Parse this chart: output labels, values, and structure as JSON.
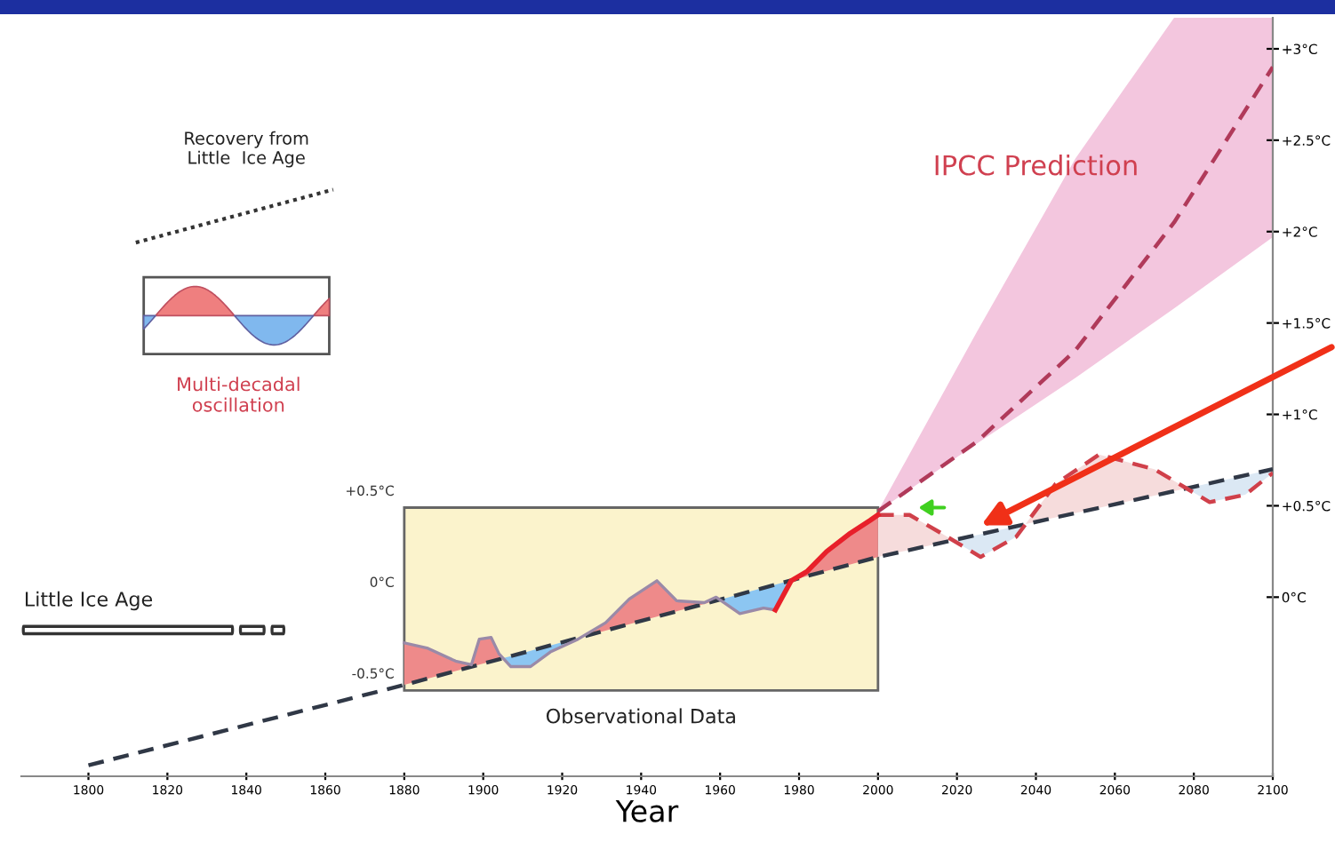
{
  "chart_data": {
    "type": "line",
    "xlabel": "Year",
    "xlim": [
      1783,
      2100
    ],
    "ylim": [
      -0.98,
      3.17
    ],
    "xticks": [
      1800,
      1820,
      1840,
      1860,
      1880,
      1900,
      1920,
      1940,
      1960,
      1980,
      2000,
      2020,
      2040,
      2060,
      2080,
      2100
    ],
    "yticks": [
      {
        "value": 0,
        "label": "0°C"
      },
      {
        "value": 0.5,
        "label": "+0.5°C"
      },
      {
        "value": 1,
        "label": "+1°C"
      },
      {
        "value": 1.5,
        "label": "+1.5°C"
      },
      {
        "value": 2,
        "label": "+2°C"
      },
      {
        "value": 2.5,
        "label": "+2.5°C"
      },
      {
        "value": 3,
        "label": "+3°C"
      }
    ],
    "series": [
      {
        "color": "#303846",
        "line_style": "dashed",
        "x": [
          1800,
          1880,
          2000,
          2100
        ],
        "values": [
          -0.92,
          -0.48,
          0.22,
          0.7
        ]
      },
      {
        "color": "#b03a5a",
        "line_style": "dashed",
        "x": [
          2000,
          2025,
          2050,
          2075,
          2100
        ],
        "values": [
          0.47,
          0.85,
          1.35,
          2.05,
          2.9
        ],
        "lower": [
          0.47,
          0.84,
          1.2,
          1.58,
          1.97
        ],
        "upper": [
          0.47,
          1.45,
          2.4,
          3.17,
          3.17
        ]
      },
      {
        "color": "#d0404a",
        "line_style": "dashed",
        "x": [
          2000,
          2008,
          2016,
          2026,
          2035,
          2045,
          2056,
          2070,
          2084,
          2093,
          2100
        ],
        "values": [
          0.45,
          0.45,
          0.35,
          0.22,
          0.33,
          0.62,
          0.78,
          0.7,
          0.52,
          0.56,
          0.68
        ]
      },
      {
        "color": "#9a8aa8",
        "x": [
          1880,
          1886,
          1893,
          1897,
          1899,
          1902,
          1904,
          1907,
          1912,
          1917,
          1924,
          1931,
          1937,
          1944,
          1949,
          1956,
          1959,
          1965,
          1971,
          1974,
          1978,
          1982,
          1987,
          1993,
          1998,
          2000
        ],
        "values": [
          -0.25,
          -0.28,
          -0.35,
          -0.37,
          -0.23,
          -0.22,
          -0.31,
          -0.38,
          -0.38,
          -0.3,
          -0.23,
          -0.14,
          -0.01,
          0.09,
          -0.02,
          -0.03,
          0.0,
          -0.09,
          -0.06,
          -0.07,
          0.09,
          0.14,
          0.25,
          0.35,
          0.42,
          0.45
        ]
      },
      {
        "color": "#e8202a",
        "x": [
          1974,
          1978,
          1982,
          1987,
          1993,
          1998,
          2000
        ],
        "values": [
          -0.07,
          0.09,
          0.14,
          0.25,
          0.35,
          0.42,
          0.45
        ]
      }
    ],
    "annotations": [
      "Recovery from\nLittle  Ice Age",
      "Multi-decadal\noscillation",
      "Little Ice Age",
      "IPCC Prediction",
      "Observational Data",
      "+0.5°C",
      "0°C",
      "-0.5°C"
    ],
    "legend": false,
    "grid": false
  }
}
